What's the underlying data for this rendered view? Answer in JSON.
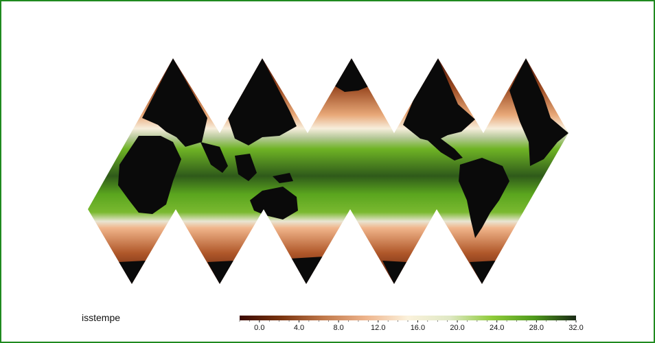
{
  "map": {
    "variable_label": "isstempe",
    "projection": "icosahedral-strip",
    "colors": {
      "frame_border": "#1f8a1f",
      "land": "#0a0a0a",
      "cold_ocean": "#4a1206",
      "warm_ocean": "#5aa51e",
      "hot_ocean": "#1e2a1a"
    }
  },
  "colorbar": {
    "tick_labels": [
      "0.0",
      "4.0",
      "8.0",
      "12.0",
      "16.0",
      "20.0",
      "24.0",
      "28.0",
      "32.0"
    ],
    "tick_values": [
      0,
      4,
      8,
      12,
      16,
      20,
      24,
      28,
      32
    ],
    "range": [
      -2,
      32
    ],
    "colors": [
      "#3b0a02",
      "#7a3410",
      "#c0784a",
      "#eeb48c",
      "#fbf2dc",
      "#dfe8c4",
      "#8fcb3a",
      "#4f9a1c",
      "#1a2a16"
    ]
  }
}
